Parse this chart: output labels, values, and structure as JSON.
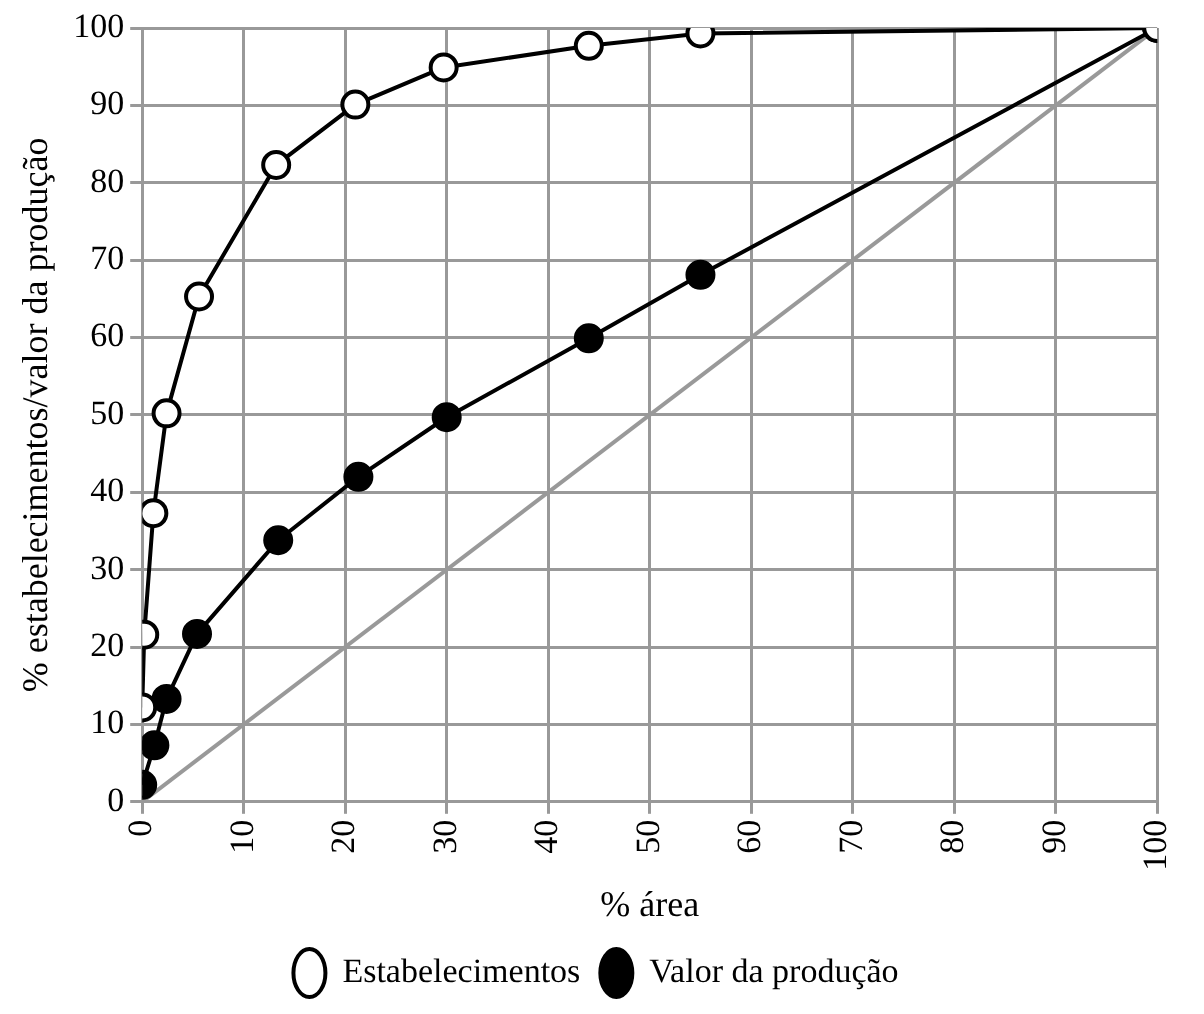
{
  "chart_data": {
    "type": "line",
    "xlabel": "% área",
    "ylabel": "% estabelecimentos/valor da produção",
    "xlim": [
      0,
      100
    ],
    "xticks": [
      0,
      10,
      20,
      30,
      40,
      50,
      60,
      70,
      80,
      90,
      100
    ],
    "ylim": [
      0,
      100
    ],
    "yticks": [
      0,
      10,
      20,
      30,
      40,
      50,
      60,
      70,
      80,
      90,
      100
    ],
    "grid": true,
    "legend": "bottom",
    "marker": "circle",
    "line_style": "solid",
    "series": [
      {
        "name": "Estabelecimentos",
        "color": "#ffffff",
        "x": [
          0,
          0.2,
          1.1,
          2.4,
          5.6,
          13.2,
          21,
          29.7,
          44,
          55,
          100
        ],
        "values": [
          12.2,
          21.6,
          37.3,
          50.2,
          65.3,
          82.3,
          90.1,
          94.9,
          97.7,
          99.3,
          100
        ]
      },
      {
        "name": "Valor da produção",
        "color": "#000000",
        "x": [
          0,
          1.2,
          2.4,
          5.4,
          13.4,
          21.3,
          30,
          44,
          55,
          100
        ],
        "values": [
          2.2,
          7.3,
          13.3,
          21.7,
          33.8,
          42,
          49.7,
          59.9,
          68.1,
          100
        ]
      },
      {
        "color": "#999999",
        "marker": "none",
        "x": [
          0,
          100
        ],
        "values": [
          0,
          100
        ]
      }
    ]
  }
}
